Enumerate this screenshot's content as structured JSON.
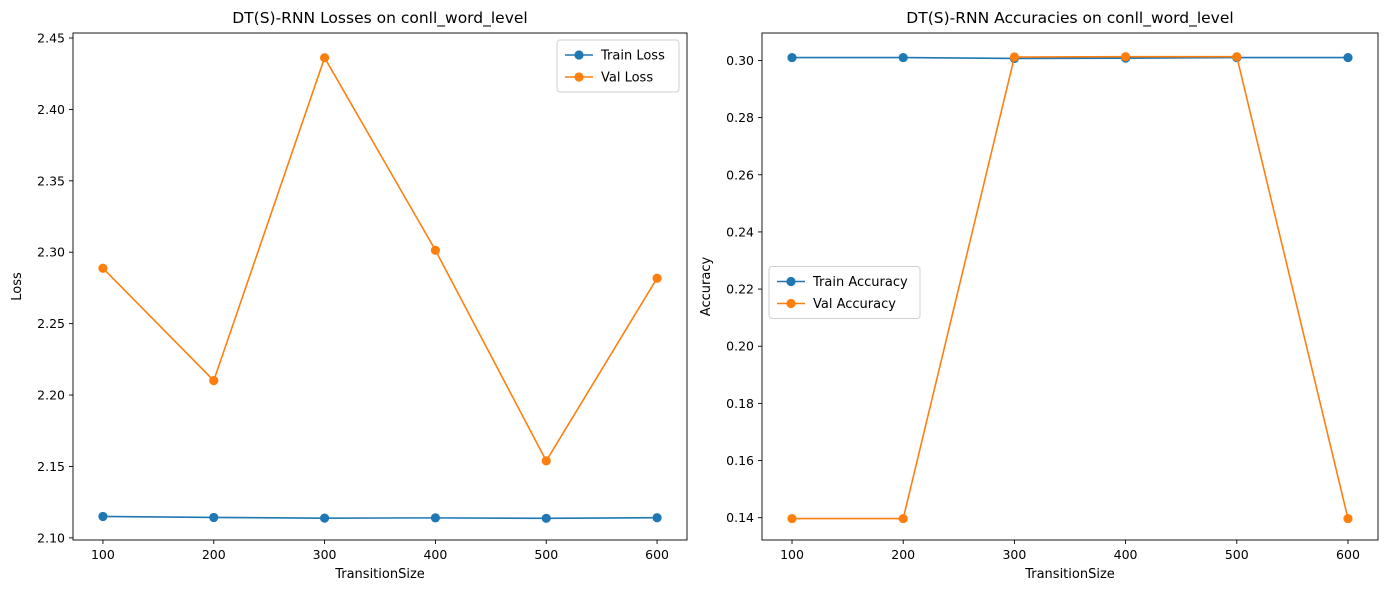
{
  "chart_data": [
    {
      "type": "line",
      "title": "DT(S)-RNN Losses on conll_word_level",
      "xlabel": "TransitionSize",
      "ylabel": "Loss",
      "x": [
        100,
        200,
        300,
        400,
        500,
        600
      ],
      "xticks": [
        "100",
        "200",
        "300",
        "400",
        "500",
        "600"
      ],
      "xlim": [
        73,
        627
      ],
      "ylim": [
        2.0985,
        2.4535
      ],
      "yticks": [
        "2.10",
        "2.15",
        "2.20",
        "2.25",
        "2.30",
        "2.35",
        "2.40",
        "2.45"
      ],
      "grid": false,
      "legend_position": "top-right",
      "series": [
        {
          "name": "Train Loss",
          "color": "#1f77b4",
          "values": [
            2.115,
            2.1143,
            2.1138,
            2.114,
            2.1137,
            2.1141
          ]
        },
        {
          "name": "Val Loss",
          "color": "#ff7f0e",
          "values": [
            2.2888,
            2.2101,
            2.4362,
            2.3014,
            2.1539,
            2.2818
          ]
        }
      ]
    },
    {
      "type": "line",
      "title": "DT(S)-RNN Accuracies on conll_word_level",
      "xlabel": "TransitionSize",
      "ylabel": "Accuracy",
      "x": [
        100,
        200,
        300,
        400,
        500,
        600
      ],
      "xticks": [
        "100",
        "200",
        "300",
        "400",
        "500",
        "600"
      ],
      "xlim": [
        73,
        627
      ],
      "ylim": [
        0.1322,
        0.3096
      ],
      "yticks": [
        "0.14",
        "0.16",
        "0.18",
        "0.20",
        "0.22",
        "0.24",
        "0.26",
        "0.28",
        "0.30"
      ],
      "grid": false,
      "legend_position": "center-left",
      "series": [
        {
          "name": "Train Accuracy",
          "color": "#1f77b4",
          "values": [
            0.301,
            0.301,
            0.3007,
            0.3008,
            0.301,
            0.301
          ]
        },
        {
          "name": "Val Accuracy",
          "color": "#ff7f0e",
          "values": [
            0.1397,
            0.1397,
            0.3012,
            0.3013,
            0.3013,
            0.1397
          ]
        }
      ]
    }
  ]
}
